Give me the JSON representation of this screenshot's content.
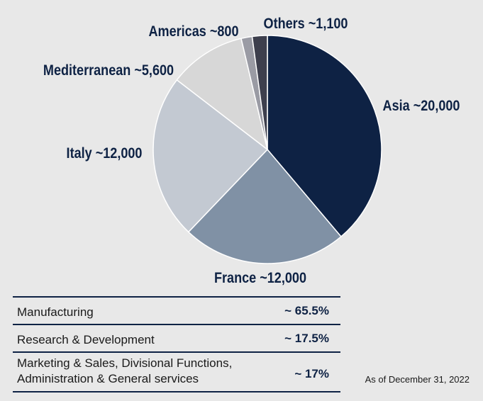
{
  "chart_data": {
    "type": "pie",
    "slices": [
      {
        "label": "Asia ~20,000",
        "value": 20000,
        "color": "#0e2244"
      },
      {
        "label": "France ~12,000",
        "value": 12000,
        "color": "#8091a5"
      },
      {
        "label": "Italy ~12,000",
        "value": 12000,
        "color": "#c3c9d2"
      },
      {
        "label": "Mediterranean ~5,600",
        "value": 5600,
        "color": "#d7d7d7"
      },
      {
        "label": "Americas ~800",
        "value": 800,
        "color": "#9a9ba4"
      },
      {
        "label": "Others ~1,100",
        "value": 1100,
        "color": "#3d3f4d"
      }
    ]
  },
  "breakdown_table": {
    "rows": [
      {
        "label": "Manufacturing",
        "value": "~ 65.5%"
      },
      {
        "label": "Research & Development",
        "value": "~ 17.5%"
      },
      {
        "label_line1": "Marketing & Sales, Divisional Functions,",
        "label_line2": "Administration & General services",
        "value": "~ 17%"
      }
    ]
  },
  "footnote": "As of December 31, 2022"
}
